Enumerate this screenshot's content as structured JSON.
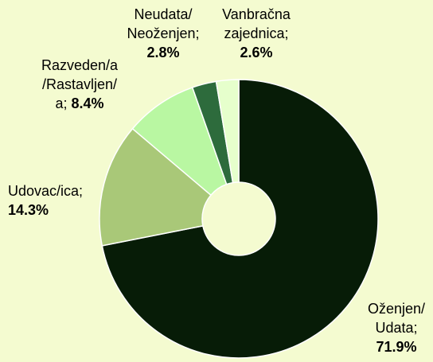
{
  "chart_data": {
    "type": "donut",
    "categories": [
      "Oženjen/\nUdata;",
      "Udovac/ica;",
      "Razveden/a\n/Rastavljen/\na;",
      "Neudata/\nNeoženjen;",
      "Vanbračna\nzajednica;"
    ],
    "values": [
      71.9,
      14.3,
      8.4,
      2.8,
      2.6
    ],
    "value_labels": [
      "71.9%",
      "14.3%",
      "8.4%",
      "2.8%",
      "2.6%"
    ],
    "colors": [
      "#071c07",
      "#a9c878",
      "#b9f7a2",
      "#2d6b3c",
      "#e6ffcc"
    ]
  }
}
